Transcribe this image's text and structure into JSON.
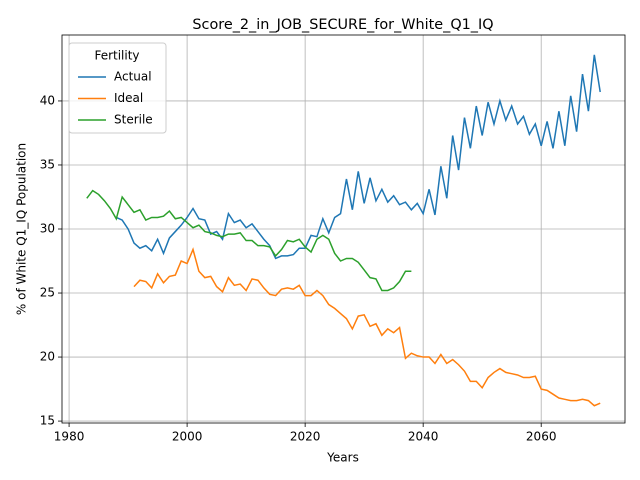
{
  "chart_data": {
    "type": "line",
    "title": "Score_2_in_JOB_SECURE_for_White_Q1_IQ",
    "xlabel": "Years",
    "ylabel": "% of White Q1_IQ Population",
    "legend_title": "Fertility",
    "legend": "upper left",
    "grid": true,
    "xlim": [
      1978.8,
      2074.2
    ],
    "ylim": [
      14.85,
      45.15
    ],
    "xticks": [
      1980,
      2000,
      2020,
      2040,
      2060
    ],
    "yticks": [
      15,
      20,
      25,
      30,
      35,
      40
    ],
    "x": [
      1983,
      1984,
      1985,
      1986,
      1987,
      1988,
      1989,
      1990,
      1991,
      1992,
      1993,
      1994,
      1995,
      1996,
      1997,
      1998,
      1999,
      2000,
      2001,
      2002,
      2003,
      2004,
      2005,
      2006,
      2007,
      2008,
      2009,
      2010,
      2011,
      2012,
      2013,
      2014,
      2015,
      2016,
      2017,
      2018,
      2019,
      2020,
      2021,
      2022,
      2023,
      2024,
      2025,
      2026,
      2027,
      2028,
      2029,
      2030,
      2031,
      2032,
      2033,
      2034,
      2035,
      2036,
      2037,
      2038,
      2039,
      2040,
      2041,
      2042,
      2043,
      2044,
      2045,
      2046,
      2047,
      2048,
      2049,
      2050,
      2051,
      2052,
      2053,
      2054,
      2055,
      2056,
      2057,
      2058,
      2059,
      2060,
      2061,
      2062,
      2063,
      2064,
      2065,
      2066,
      2067,
      2068,
      2069,
      2070
    ],
    "series": [
      {
        "name": "Actual",
        "color": "#1f77b4",
        "values": [
          null,
          null,
          null,
          null,
          null,
          30.9,
          30.7,
          30.0,
          28.9,
          28.5,
          28.7,
          28.3,
          29.2,
          28.1,
          29.3,
          29.8,
          30.3,
          30.9,
          31.6,
          30.8,
          30.7,
          29.6,
          29.8,
          29.2,
          31.2,
          30.5,
          30.7,
          30.1,
          30.4,
          29.8,
          29.2,
          28.7,
          27.7,
          27.9,
          27.9,
          28.0,
          28.5,
          28.5,
          29.5,
          29.4,
          30.8,
          29.7,
          30.9,
          31.2,
          33.9,
          31.5,
          34.5,
          32.0,
          34.0,
          32.2,
          33.1,
          32.1,
          32.6,
          31.9,
          32.1,
          31.5,
          32.0,
          31.2,
          33.1,
          31.1,
          34.9,
          32.4,
          37.3,
          34.6,
          38.7,
          36.3,
          39.6,
          37.3,
          39.9,
          38.2,
          40.0,
          38.5,
          39.6,
          38.2,
          38.8,
          37.4,
          38.2,
          36.5,
          38.4,
          36.3,
          39.2,
          36.5,
          40.4,
          37.6,
          42.1,
          39.2,
          43.6,
          40.7
        ]
      },
      {
        "name": "Ideal",
        "color": "#ff7f0e",
        "values": [
          null,
          null,
          null,
          null,
          null,
          null,
          null,
          null,
          25.5,
          26.0,
          25.9,
          25.4,
          26.5,
          25.8,
          26.3,
          26.4,
          27.5,
          27.3,
          28.4,
          26.7,
          26.2,
          26.3,
          25.5,
          25.1,
          26.2,
          25.6,
          25.7,
          25.2,
          26.1,
          26.0,
          25.4,
          24.9,
          24.8,
          25.3,
          25.4,
          25.3,
          25.6,
          24.8,
          24.8,
          25.2,
          24.8,
          24.1,
          23.8,
          23.4,
          23.0,
          22.2,
          23.2,
          23.3,
          22.4,
          22.6,
          21.7,
          22.2,
          21.9,
          22.3,
          19.9,
          20.3,
          20.1,
          20.0,
          20.0,
          19.5,
          20.2,
          19.5,
          19.8,
          19.4,
          18.9,
          18.1,
          18.1,
          17.6,
          18.4,
          18.8,
          19.1,
          18.8,
          18.7,
          18.6,
          18.4,
          18.4,
          18.5,
          17.5,
          17.4,
          17.1,
          16.8,
          16.7,
          16.6,
          16.6,
          16.7,
          16.6,
          16.2,
          16.4
        ]
      },
      {
        "name": "Sterile",
        "color": "#2ca02c",
        "values": [
          32.4,
          33.0,
          32.7,
          32.2,
          31.6,
          30.8,
          32.5,
          31.9,
          31.3,
          31.5,
          30.7,
          30.9,
          30.9,
          31.0,
          31.4,
          30.8,
          30.9,
          30.5,
          30.1,
          30.3,
          29.8,
          29.7,
          29.5,
          29.4,
          29.6,
          29.6,
          29.7,
          29.1,
          29.1,
          28.7,
          28.7,
          28.6,
          27.9,
          28.4,
          29.1,
          29.0,
          29.2,
          28.6,
          28.2,
          29.2,
          29.5,
          29.2,
          28.1,
          27.5,
          27.7,
          27.7,
          27.4,
          26.8,
          26.2,
          26.1,
          25.2,
          25.2,
          25.4,
          25.9,
          26.7,
          26.7,
          null,
          null,
          null,
          null,
          null,
          null,
          null,
          null,
          null,
          null,
          null,
          null,
          null,
          null,
          null,
          null,
          null,
          null,
          null,
          null,
          null,
          null,
          null,
          null,
          null,
          null,
          null,
          null,
          null,
          null,
          null,
          null
        ]
      }
    ]
  }
}
